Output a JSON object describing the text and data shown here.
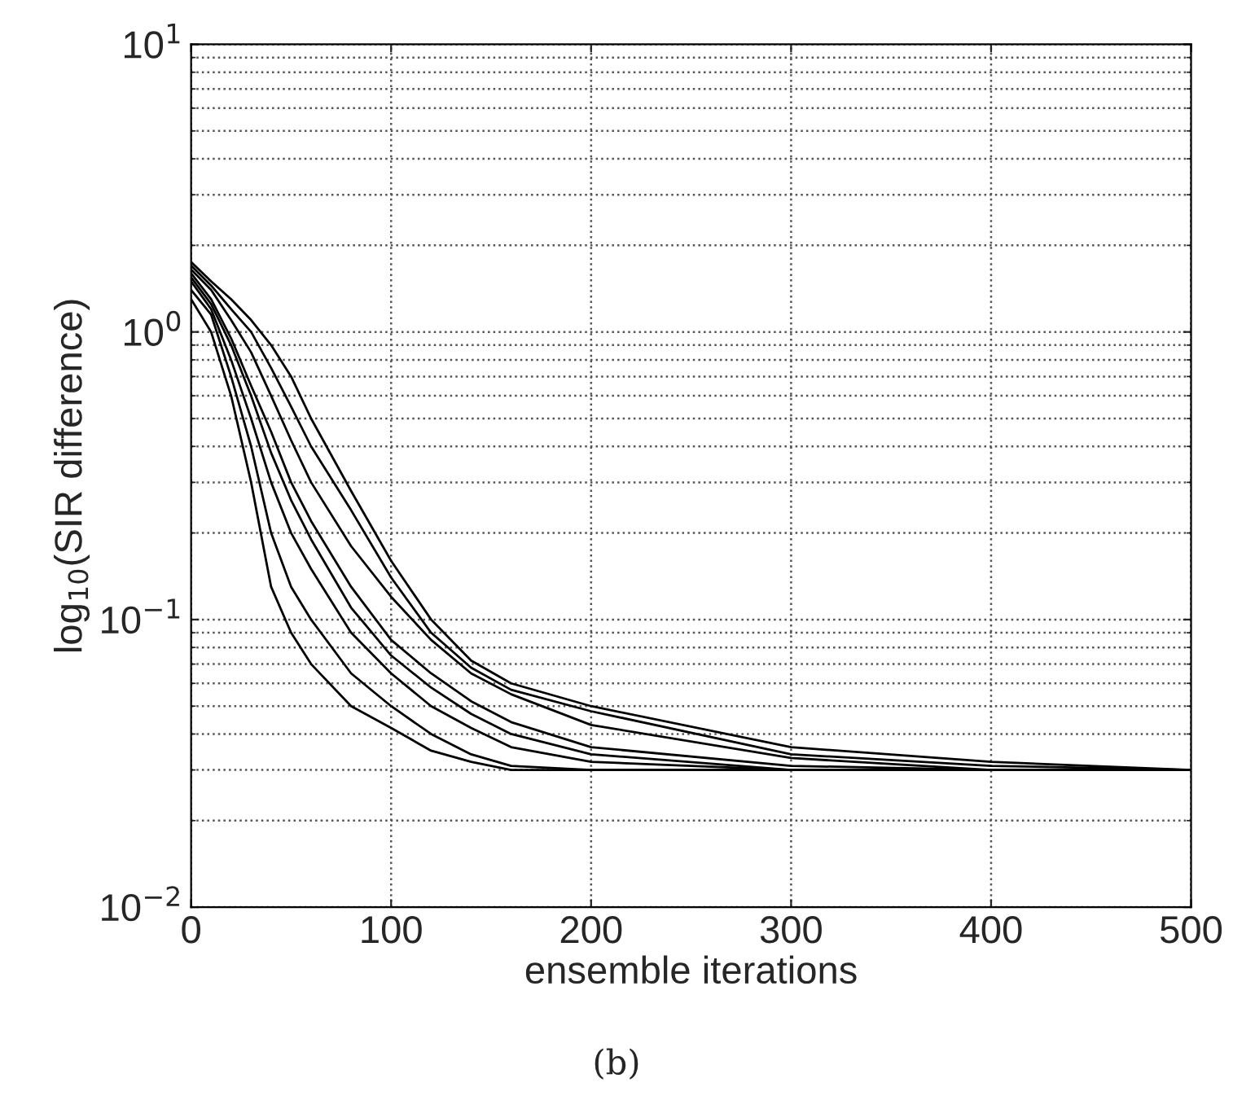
{
  "chart_data": {
    "type": "line",
    "ylabel": "log$_{10}$(SIR difference)",
    "xlabel": "ensemble iterations",
    "annotations": [
      "(b)"
    ],
    "x": [
      0,
      10,
      20,
      30,
      40,
      50,
      60,
      80,
      100,
      120,
      140,
      160,
      200,
      300,
      400,
      500
    ],
    "xlim": [
      0,
      500
    ],
    "xticks": [
      0,
      100,
      200,
      300,
      400,
      500
    ],
    "log": true,
    "ylim": [
      0.01,
      10
    ],
    "yticks": [
      {
        "value": 0.01,
        "label": "10$^{−2}$"
      },
      {
        "value": 0.1,
        "label": "10$^{−1}$"
      },
      {
        "value": 1,
        "label": "10$^{0}$"
      },
      {
        "value": 10,
        "label": "10$^{1}$"
      }
    ],
    "grid": true,
    "line_style": "solid",
    "marker": "none",
    "series": [
      {
        "color": "#000000",
        "values": [
          1.3,
          1.0,
          0.6,
          0.3,
          0.13,
          0.09,
          0.07,
          0.05,
          0.042,
          0.035,
          0.032,
          0.03,
          0.03,
          0.03,
          0.03,
          0.03
        ]
      },
      {
        "color": "#000000",
        "values": [
          1.4,
          1.15,
          0.7,
          0.4,
          0.2,
          0.13,
          0.1,
          0.065,
          0.05,
          0.04,
          0.034,
          0.031,
          0.03,
          0.03,
          0.03,
          0.03
        ]
      },
      {
        "color": "#000000",
        "values": [
          1.5,
          1.2,
          0.8,
          0.5,
          0.3,
          0.2,
          0.15,
          0.09,
          0.065,
          0.05,
          0.042,
          0.036,
          0.032,
          0.03,
          0.03,
          0.03
        ]
      },
      {
        "color": "#000000",
        "values": [
          1.55,
          1.25,
          0.9,
          0.6,
          0.38,
          0.26,
          0.19,
          0.11,
          0.075,
          0.058,
          0.047,
          0.04,
          0.034,
          0.03,
          0.03,
          0.03
        ]
      },
      {
        "color": "#000000",
        "values": [
          1.6,
          1.3,
          0.95,
          0.65,
          0.45,
          0.3,
          0.22,
          0.13,
          0.085,
          0.065,
          0.052,
          0.044,
          0.036,
          0.031,
          0.03,
          0.03
        ]
      },
      {
        "color": "#000000",
        "values": [
          1.65,
          1.4,
          1.1,
          0.85,
          0.6,
          0.42,
          0.3,
          0.18,
          0.12,
          0.085,
          0.065,
          0.055,
          0.043,
          0.033,
          0.03,
          0.03
        ]
      },
      {
        "color": "#000000",
        "values": [
          1.7,
          1.45,
          1.2,
          1.0,
          0.75,
          0.55,
          0.4,
          0.24,
          0.14,
          0.09,
          0.068,
          0.057,
          0.048,
          0.034,
          0.031,
          0.03
        ]
      },
      {
        "color": "#000000",
        "values": [
          1.75,
          1.5,
          1.3,
          1.1,
          0.9,
          0.7,
          0.5,
          0.28,
          0.16,
          0.1,
          0.072,
          0.06,
          0.05,
          0.036,
          0.032,
          0.03
        ]
      }
    ]
  }
}
